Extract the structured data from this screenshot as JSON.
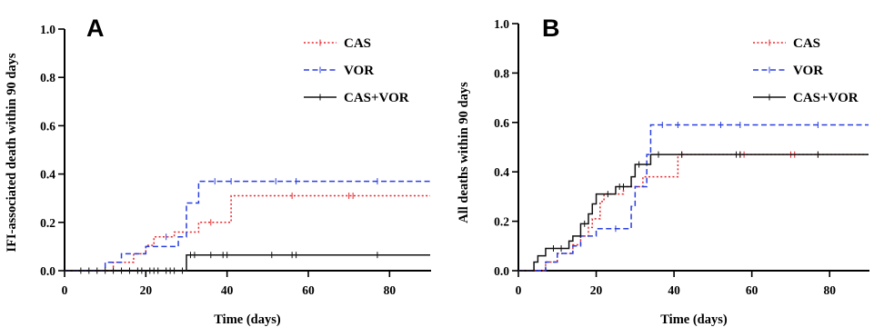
{
  "colors": {
    "CAS": "#e8262a",
    "VOR": "#2a3fe0",
    "CAS+VOR": "#111111"
  },
  "chart_data": [
    {
      "type": "line",
      "subtype": "kaplan-meier-step",
      "panel_label": "A",
      "xlabel": "Time (days)",
      "ylabel": "IFI-associated death within 90 days",
      "xlim": [
        0,
        90
      ],
      "ylim": [
        0,
        1.0
      ],
      "xticks": [
        0,
        20,
        40,
        60,
        80
      ],
      "yticks": [
        0.0,
        0.2,
        0.4,
        0.6,
        0.8,
        1.0
      ],
      "ytick_labels": [
        "0.0",
        "0.2",
        "0.4",
        "0.6",
        "0.8",
        "1.0"
      ],
      "grid": false,
      "legend_position": "top-right",
      "series": [
        {
          "name": "CAS",
          "line_style": "dotted",
          "steps": [
            [
              0,
              0
            ],
            [
              12,
              0.035
            ],
            [
              17,
              0.07
            ],
            [
              20,
              0.105
            ],
            [
              22,
              0.14
            ],
            [
              27,
              0.16
            ],
            [
              33,
              0.2
            ],
            [
              41,
              0.31
            ],
            [
              90,
              0.31
            ]
          ],
          "censored": [
            [
              36,
              0.2
            ],
            [
              56,
              0.31
            ],
            [
              70,
              0.31
            ],
            [
              71,
              0.31
            ]
          ]
        },
        {
          "name": "VOR",
          "line_style": "dashed",
          "steps": [
            [
              0,
              0
            ],
            [
              10,
              0.035
            ],
            [
              14,
              0.07
            ],
            [
              20,
              0.1
            ],
            [
              28,
              0.14
            ],
            [
              30,
              0.28
            ],
            [
              33,
              0.37
            ],
            [
              90,
              0.37
            ]
          ],
          "censored": [
            [
              25,
              0.14
            ],
            [
              37,
              0.37
            ],
            [
              41,
              0.37
            ],
            [
              52,
              0.37
            ],
            [
              57,
              0.37
            ],
            [
              77,
              0.37
            ]
          ]
        },
        {
          "name": "CAS+VOR",
          "line_style": "solid",
          "steps": [
            [
              0,
              0
            ],
            [
              30,
              0.065
            ],
            [
              90,
              0.065
            ]
          ],
          "censored": [
            [
              4,
              0
            ],
            [
              6,
              0
            ],
            [
              8,
              0
            ],
            [
              10,
              0
            ],
            [
              12,
              0
            ],
            [
              14,
              0
            ],
            [
              16,
              0
            ],
            [
              18,
              0
            ],
            [
              19,
              0
            ],
            [
              21,
              0
            ],
            [
              22,
              0
            ],
            [
              23,
              0
            ],
            [
              25,
              0
            ],
            [
              26,
              0
            ],
            [
              27,
              0
            ],
            [
              29,
              0
            ],
            [
              31,
              0.065
            ],
            [
              32,
              0.065
            ],
            [
              36,
              0.065
            ],
            [
              39,
              0.065
            ],
            [
              40,
              0.065
            ],
            [
              51,
              0.065
            ],
            [
              56,
              0.065
            ],
            [
              57,
              0.065
            ],
            [
              77,
              0.065
            ]
          ]
        }
      ]
    },
    {
      "type": "line",
      "subtype": "kaplan-meier-step",
      "panel_label": "B",
      "xlabel": "Time (days)",
      "ylabel": "All deaths within 90 days",
      "xlim": [
        0,
        90
      ],
      "ylim": [
        0,
        1.0
      ],
      "xticks": [
        0,
        20,
        40,
        60,
        80
      ],
      "yticks": [
        0.0,
        0.2,
        0.4,
        0.6,
        0.8,
        1.0
      ],
      "ytick_labels": [
        "0.0",
        "0.2",
        "0.4",
        "0.6",
        "0.8",
        "1.0"
      ],
      "grid": false,
      "legend_position": "top-right",
      "series": [
        {
          "name": "CAS",
          "line_style": "dotted",
          "steps": [
            [
              0,
              0
            ],
            [
              7,
              0.035
            ],
            [
              10,
              0.07
            ],
            [
              14,
              0.105
            ],
            [
              16,
              0.14
            ],
            [
              18,
              0.175
            ],
            [
              19,
              0.21
            ],
            [
              21,
              0.28
            ],
            [
              22,
              0.31
            ],
            [
              27,
              0.34
            ],
            [
              32,
              0.38
            ],
            [
              41,
              0.47
            ],
            [
              90,
              0.47
            ]
          ],
          "censored": [
            [
              42,
              0.47
            ],
            [
              57,
              0.47
            ],
            [
              58,
              0.47
            ],
            [
              70,
              0.47
            ],
            [
              71,
              0.47
            ],
            [
              77,
              0.47
            ]
          ]
        },
        {
          "name": "VOR",
          "line_style": "dashed",
          "steps": [
            [
              0,
              0
            ],
            [
              7,
              0.035
            ],
            [
              10,
              0.07
            ],
            [
              14,
              0.1
            ],
            [
              16,
              0.14
            ],
            [
              20,
              0.17
            ],
            [
              29,
              0.26
            ],
            [
              30,
              0.34
            ],
            [
              33,
              0.47
            ],
            [
              34,
              0.59
            ],
            [
              90,
              0.59
            ]
          ],
          "censored": [
            [
              25,
              0.17
            ],
            [
              37,
              0.59
            ],
            [
              41,
              0.59
            ],
            [
              52,
              0.59
            ],
            [
              57,
              0.59
            ],
            [
              77,
              0.59
            ]
          ]
        },
        {
          "name": "CAS+VOR",
          "line_style": "solid",
          "steps": [
            [
              0,
              0
            ],
            [
              4,
              0.035
            ],
            [
              5,
              0.06
            ],
            [
              7,
              0.09
            ],
            [
              13,
              0.12
            ],
            [
              14,
              0.14
            ],
            [
              16,
              0.19
            ],
            [
              18,
              0.23
            ],
            [
              19,
              0.27
            ],
            [
              20,
              0.31
            ],
            [
              25,
              0.34
            ],
            [
              29,
              0.38
            ],
            [
              30,
              0.43
            ],
            [
              34,
              0.47
            ],
            [
              90,
              0.47
            ]
          ],
          "censored": [
            [
              9,
              0.09
            ],
            [
              11,
              0.09
            ],
            [
              17,
              0.19
            ],
            [
              23,
              0.31
            ],
            [
              26,
              0.34
            ],
            [
              27,
              0.34
            ],
            [
              31,
              0.43
            ],
            [
              36,
              0.47
            ],
            [
              42,
              0.47
            ],
            [
              56,
              0.47
            ],
            [
              57,
              0.47
            ],
            [
              77,
              0.47
            ]
          ]
        }
      ]
    }
  ]
}
